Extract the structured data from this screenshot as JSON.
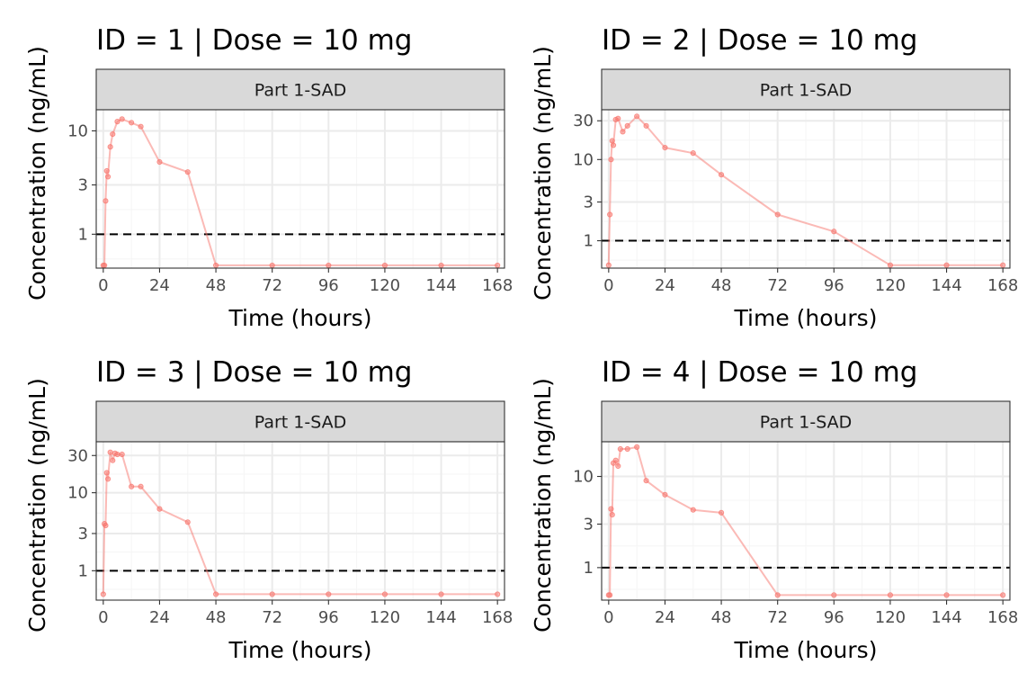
{
  "colors": {
    "series": "#F8766D",
    "panel_border": "#333333",
    "strip_fill": "#D9D9D9",
    "grid_major": "#EBEBEB",
    "grid_minor": "#F5F5F5",
    "reference_line": "#000000",
    "background": "#FFFFFF"
  },
  "chart_data": [
    {
      "type": "line",
      "title": "ID = 1 | Dose = 10 mg",
      "strip": "Part 1-SAD",
      "xlabel": "Time (hours)",
      "ylabel": "Concentration (ng/mL)",
      "xlim": [
        -3,
        171
      ],
      "xticks": [
        0,
        24,
        48,
        72,
        96,
        120,
        144,
        168
      ],
      "xtick_labels": [
        "0",
        "24",
        "48",
        "72",
        "96",
        "120",
        "144",
        "168"
      ],
      "y_scale": "log",
      "ylim": [
        0.47,
        16
      ],
      "yticks": [
        1,
        3,
        10
      ],
      "ytick_labels": [
        "1",
        "3",
        "10"
      ],
      "reference_line_y": 1,
      "markers": true,
      "grid": true,
      "x": [
        0,
        0.5,
        1,
        1.5,
        2,
        3,
        4,
        6,
        8,
        12,
        16,
        24,
        36,
        48,
        72,
        96,
        120,
        144,
        168
      ],
      "y": [
        0.5,
        0.5,
        2.1,
        4.1,
        3.6,
        7.0,
        9.3,
        12.3,
        13.0,
        12.0,
        11.0,
        5.0,
        4.0,
        0.5,
        0.5,
        0.5,
        0.5,
        0.5,
        0.5
      ]
    },
    {
      "type": "line",
      "title": "ID = 2 | Dose = 10 mg",
      "strip": "Part 1-SAD",
      "xlabel": "Time (hours)",
      "ylabel": "Concentration (ng/mL)",
      "xlim": [
        -3,
        171
      ],
      "xticks": [
        0,
        24,
        48,
        72,
        96,
        120,
        144,
        168
      ],
      "xtick_labels": [
        "0",
        "24",
        "48",
        "72",
        "96",
        "120",
        "144",
        "168"
      ],
      "y_scale": "log",
      "ylim": [
        0.46,
        41
      ],
      "yticks": [
        1,
        3,
        10,
        30
      ],
      "ytick_labels": [
        "1",
        "3",
        "10",
        "30"
      ],
      "reference_line_y": 1,
      "markers": true,
      "grid": true,
      "x": [
        0,
        0.5,
        1,
        1.5,
        2,
        3,
        4,
        6,
        8,
        12,
        16,
        24,
        36,
        48,
        72,
        96,
        120,
        144,
        168
      ],
      "y": [
        0.5,
        2.1,
        10.0,
        17.0,
        15.0,
        31.0,
        32.0,
        22.0,
        26.0,
        34.0,
        26.0,
        14.0,
        12.0,
        6.5,
        2.1,
        1.3,
        0.5,
        0.5,
        0.5
      ]
    },
    {
      "type": "line",
      "title": "ID = 3 | Dose = 10 mg",
      "strip": "Part 1-SAD",
      "xlabel": "Time (hours)",
      "ylabel": "Concentration (ng/mL)",
      "xlim": [
        -3,
        171
      ],
      "xticks": [
        0,
        24,
        48,
        72,
        96,
        120,
        144,
        168
      ],
      "xtick_labels": [
        "0",
        "24",
        "48",
        "72",
        "96",
        "120",
        "144",
        "168"
      ],
      "y_scale": "log",
      "ylim": [
        0.42,
        45
      ],
      "yticks": [
        1,
        3,
        10,
        30
      ],
      "ytick_labels": [
        "1",
        "3",
        "10",
        "30"
      ],
      "reference_line_y": 1,
      "markers": true,
      "grid": true,
      "x": [
        0,
        0.5,
        1,
        1.5,
        2,
        3,
        4,
        5,
        6,
        8,
        12,
        16,
        24,
        36,
        48,
        72,
        96,
        120,
        144,
        168
      ],
      "y": [
        0.5,
        4.0,
        3.8,
        18.0,
        15.0,
        33.0,
        26.0,
        32.0,
        31.0,
        31.0,
        12.0,
        12.0,
        6.2,
        4.2,
        0.5,
        0.5,
        0.5,
        0.5,
        0.5,
        0.5
      ]
    },
    {
      "type": "line",
      "title": "ID = 4 | Dose = 10 mg",
      "strip": "Part 1-SAD",
      "xlabel": "Time (hours)",
      "ylabel": "Concentration (ng/mL)",
      "xlim": [
        -3,
        171
      ],
      "xticks": [
        0,
        24,
        48,
        72,
        96,
        120,
        144,
        168
      ],
      "xtick_labels": [
        "0",
        "24",
        "48",
        "72",
        "96",
        "120",
        "144",
        "168"
      ],
      "y_scale": "log",
      "ylim": [
        0.44,
        24
      ],
      "yticks": [
        1,
        3,
        10
      ],
      "ytick_labels": [
        "1",
        "3",
        "10"
      ],
      "reference_line_y": 1,
      "markers": true,
      "grid": true,
      "x": [
        0,
        0.5,
        1,
        1.5,
        2,
        3,
        4,
        5,
        8,
        12,
        16,
        24,
        36,
        48,
        72,
        96,
        120,
        144,
        168
      ],
      "y": [
        0.5,
        0.5,
        4.4,
        3.8,
        14.0,
        15.0,
        13.0,
        20.0,
        20.0,
        21.0,
        9.0,
        6.3,
        4.3,
        4.0,
        0.5,
        0.5,
        0.5,
        0.5,
        0.5
      ]
    }
  ]
}
